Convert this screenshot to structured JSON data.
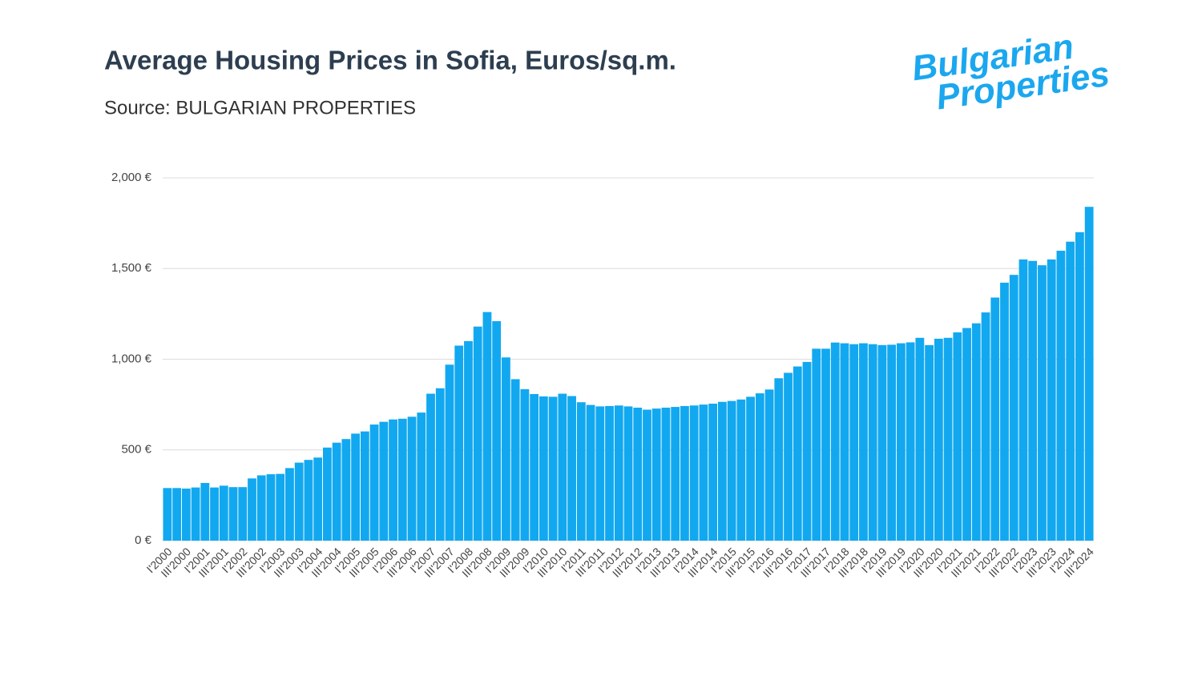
{
  "chart_data": {
    "type": "bar",
    "title": "Average Housing Prices in Sofia, Euros/sq.m.",
    "subtitle": "Source: BULGARIAN PROPERTIES",
    "logo": [
      "Bulgarian",
      "Properties"
    ],
    "color": "#12a8f0",
    "grid": true,
    "ylim": [
      0,
      2000
    ],
    "yticks": [
      {
        "value": 0,
        "label": "0 €"
      },
      {
        "value": 500,
        "label": "500 €"
      },
      {
        "value": 1000,
        "label": "1,000 €"
      },
      {
        "value": 1500,
        "label": "1,500 €"
      },
      {
        "value": 2000,
        "label": "2,000 €"
      }
    ],
    "categories": [
      "I'2000",
      null,
      "III'2000",
      null,
      "I'2001",
      null,
      "III'2001",
      null,
      "I'2002",
      null,
      "III'2002",
      null,
      "I'2003",
      null,
      "III'2003",
      null,
      "I'2004",
      null,
      "III'2004",
      null,
      "I'2005",
      null,
      "III'2005",
      null,
      "I'2006",
      null,
      "III'2006",
      null,
      "I'2007",
      null,
      "III'2007",
      null,
      "I'2008",
      null,
      "III'2008",
      null,
      "I'2009",
      null,
      "III'2009",
      null,
      "I'2010",
      null,
      "III'2010",
      null,
      "I'2011",
      null,
      "III'2011",
      null,
      "I'2012",
      null,
      "III'2012",
      null,
      "I'2013",
      null,
      "III'2013",
      null,
      "I'2014",
      null,
      "III'2014",
      null,
      "I'2015",
      null,
      "III'2015",
      null,
      "I'2016",
      null,
      "III'2016",
      null,
      "I'2017",
      null,
      "III'2017",
      null,
      "I'2018",
      null,
      "III'2018",
      null,
      "I'2019",
      null,
      "III'2019",
      null,
      "I'2020",
      null,
      "III'2020",
      null,
      "I'2021",
      null,
      "III'2021",
      null,
      "I'2022",
      null,
      "III'2022",
      null,
      "I'2023",
      null,
      "III'2023",
      null,
      "I'2024",
      null,
      "III'2024"
    ],
    "values": [
      290,
      290,
      287,
      293,
      318,
      293,
      303,
      295,
      295,
      343,
      360,
      366,
      368,
      400,
      430,
      445,
      458,
      513,
      540,
      560,
      590,
      602,
      640,
      655,
      668,
      672,
      683,
      706,
      810,
      840,
      970,
      1075,
      1100,
      1180,
      1260,
      1210,
      1010,
      890,
      835,
      808,
      795,
      793,
      810,
      797,
      763,
      748,
      740,
      742,
      745,
      740,
      733,
      722,
      728,
      733,
      737,
      742,
      745,
      750,
      755,
      765,
      770,
      778,
      793,
      812,
      833,
      895,
      925,
      960,
      985,
      1058,
      1058,
      1092,
      1088,
      1083,
      1088,
      1083,
      1078,
      1080,
      1088,
      1093,
      1118,
      1078,
      1113,
      1118,
      1148,
      1172,
      1198,
      1258,
      1340,
      1422,
      1465,
      1550,
      1542,
      1518,
      1550,
      1598,
      1648,
      1700,
      1840
    ]
  }
}
